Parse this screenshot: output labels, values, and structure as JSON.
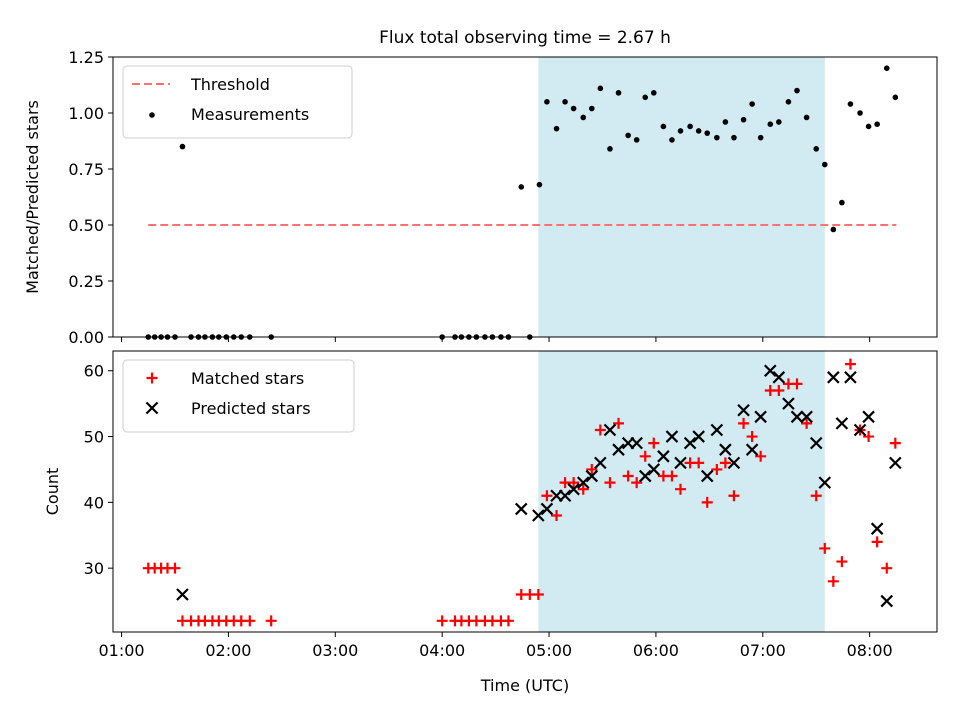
{
  "figure_title": "Flux total observing time = 2.67 h",
  "colors": {
    "threshold": "#ff7070",
    "measurement": "#000000",
    "matched": "#ff0000",
    "predicted": "#000000",
    "span": "#add8e6"
  },
  "chart_data": [
    {
      "type": "scatter",
      "title": "Flux total observing time = 2.67 h",
      "xlabel": "",
      "ylabel": "Matched/Predicted stars",
      "x_unit": "hours UTC",
      "xlim": [
        0.92,
        8.63
      ],
      "ylim": [
        0,
        1.25
      ],
      "yticks": [
        0.0,
        0.25,
        0.5,
        0.75,
        1.0,
        1.25
      ],
      "ytick_labels": [
        "0.00",
        "0.25",
        "0.50",
        "0.75",
        "1.00",
        "1.25"
      ],
      "grid": false,
      "legend": "upper-left",
      "shaded_span": [
        4.9,
        7.58
      ],
      "threshold": {
        "name": "Threshold",
        "value": 0.5,
        "x": [
          1.25,
          8.25
        ]
      },
      "series": [
        {
          "name": "Measurements",
          "marker": "dot",
          "points": [
            [
              1.25,
              0.0
            ],
            [
              1.31,
              0.0
            ],
            [
              1.37,
              0.0
            ],
            [
              1.43,
              0.0
            ],
            [
              1.5,
              0.0
            ],
            [
              1.57,
              0.85
            ],
            [
              1.65,
              0.0
            ],
            [
              1.72,
              0.0
            ],
            [
              1.78,
              0.0
            ],
            [
              1.85,
              0.0
            ],
            [
              1.91,
              0.0
            ],
            [
              1.98,
              0.0
            ],
            [
              2.05,
              0.0
            ],
            [
              2.12,
              0.0
            ],
            [
              2.2,
              0.0
            ],
            [
              2.4,
              0.0
            ],
            [
              4.0,
              0.0
            ],
            [
              4.12,
              0.0
            ],
            [
              4.18,
              0.0
            ],
            [
              4.25,
              0.0
            ],
            [
              4.32,
              0.0
            ],
            [
              4.4,
              0.0
            ],
            [
              4.47,
              0.0
            ],
            [
              4.55,
              0.0
            ],
            [
              4.62,
              0.0
            ],
            [
              4.74,
              0.67
            ],
            [
              4.82,
              0.0
            ],
            [
              4.91,
              0.68
            ],
            [
              4.98,
              1.05
            ],
            [
              5.07,
              0.93
            ],
            [
              5.15,
              1.05
            ],
            [
              5.23,
              1.02
            ],
            [
              5.32,
              0.98
            ],
            [
              5.4,
              1.02
            ],
            [
              5.48,
              1.11
            ],
            [
              5.57,
              0.84
            ],
            [
              5.65,
              1.09
            ],
            [
              5.74,
              0.9
            ],
            [
              5.82,
              0.88
            ],
            [
              5.9,
              1.07
            ],
            [
              5.98,
              1.09
            ],
            [
              6.07,
              0.94
            ],
            [
              6.15,
              0.88
            ],
            [
              6.23,
              0.92
            ],
            [
              6.32,
              0.94
            ],
            [
              6.4,
              0.92
            ],
            [
              6.48,
              0.91
            ],
            [
              6.57,
              0.89
            ],
            [
              6.65,
              0.96
            ],
            [
              6.73,
              0.89
            ],
            [
              6.82,
              0.97
            ],
            [
              6.9,
              1.04
            ],
            [
              6.98,
              0.89
            ],
            [
              7.07,
              0.95
            ],
            [
              7.15,
              0.96
            ],
            [
              7.24,
              1.05
            ],
            [
              7.32,
              1.1
            ],
            [
              7.41,
              0.98
            ],
            [
              7.5,
              0.84
            ],
            [
              7.58,
              0.77
            ],
            [
              7.66,
              0.48
            ],
            [
              7.74,
              0.6
            ],
            [
              7.82,
              1.04
            ],
            [
              7.91,
              1.0
            ],
            [
              7.99,
              0.94
            ],
            [
              8.07,
              0.95
            ],
            [
              8.16,
              1.2
            ],
            [
              8.24,
              1.07
            ]
          ]
        }
      ]
    },
    {
      "type": "scatter",
      "title": "",
      "xlabel": "Time (UTC)",
      "ylabel": "Count",
      "x_unit": "hours UTC",
      "xlim": [
        0.92,
        8.63
      ],
      "ylim": [
        20.3,
        63.0
      ],
      "yticks": [
        30,
        40,
        50,
        60
      ],
      "ytick_labels": [
        "30",
        "40",
        "50",
        "60"
      ],
      "xticks": [
        1,
        2,
        3,
        4,
        5,
        6,
        7,
        8
      ],
      "xtick_labels": [
        "01:00",
        "02:00",
        "03:00",
        "04:00",
        "05:00",
        "06:00",
        "07:00",
        "08:00"
      ],
      "grid": false,
      "legend": "upper-left",
      "shaded_span": [
        4.9,
        7.58
      ],
      "series": [
        {
          "name": "Matched stars",
          "marker": "plus",
          "points": [
            [
              1.25,
              30
            ],
            [
              1.31,
              30
            ],
            [
              1.37,
              30
            ],
            [
              1.43,
              30
            ],
            [
              1.5,
              30
            ],
            [
              1.57,
              22
            ],
            [
              1.65,
              22
            ],
            [
              1.72,
              22
            ],
            [
              1.78,
              22
            ],
            [
              1.85,
              22
            ],
            [
              1.91,
              22
            ],
            [
              1.98,
              22
            ],
            [
              2.05,
              22
            ],
            [
              2.12,
              22
            ],
            [
              2.2,
              22
            ],
            [
              2.4,
              22
            ],
            [
              4.0,
              22
            ],
            [
              4.12,
              22
            ],
            [
              4.18,
              22
            ],
            [
              4.25,
              22
            ],
            [
              4.32,
              22
            ],
            [
              4.4,
              22
            ],
            [
              4.47,
              22
            ],
            [
              4.55,
              22
            ],
            [
              4.62,
              22
            ],
            [
              4.74,
              26
            ],
            [
              4.82,
              26
            ],
            [
              4.9,
              26
            ],
            [
              4.98,
              41
            ],
            [
              5.07,
              38
            ],
            [
              5.15,
              43
            ],
            [
              5.23,
              43
            ],
            [
              5.32,
              42
            ],
            [
              5.4,
              45
            ],
            [
              5.48,
              51
            ],
            [
              5.57,
              43
            ],
            [
              5.65,
              52
            ],
            [
              5.74,
              44
            ],
            [
              5.82,
              43
            ],
            [
              5.9,
              47
            ],
            [
              5.98,
              49
            ],
            [
              6.07,
              44
            ],
            [
              6.15,
              44
            ],
            [
              6.23,
              42
            ],
            [
              6.32,
              46
            ],
            [
              6.4,
              46
            ],
            [
              6.48,
              40
            ],
            [
              6.57,
              45
            ],
            [
              6.65,
              46
            ],
            [
              6.73,
              41
            ],
            [
              6.82,
              52
            ],
            [
              6.9,
              50
            ],
            [
              6.98,
              47
            ],
            [
              7.07,
              57
            ],
            [
              7.15,
              57
            ],
            [
              7.24,
              58
            ],
            [
              7.32,
              58
            ],
            [
              7.41,
              52
            ],
            [
              7.5,
              41
            ],
            [
              7.58,
              33
            ],
            [
              7.66,
              28
            ],
            [
              7.74,
              31
            ],
            [
              7.82,
              61
            ],
            [
              7.91,
              51
            ],
            [
              7.99,
              50
            ],
            [
              8.07,
              34
            ],
            [
              8.16,
              30
            ],
            [
              8.24,
              49
            ]
          ]
        },
        {
          "name": "Predicted stars",
          "marker": "x",
          "points": [
            [
              1.57,
              26
            ],
            [
              4.74,
              39
            ],
            [
              4.9,
              38
            ],
            [
              4.98,
              39
            ],
            [
              5.07,
              41
            ],
            [
              5.15,
              41
            ],
            [
              5.23,
              42
            ],
            [
              5.32,
              43
            ],
            [
              5.4,
              44
            ],
            [
              5.48,
              46
            ],
            [
              5.57,
              51
            ],
            [
              5.65,
              48
            ],
            [
              5.74,
              49
            ],
            [
              5.82,
              49
            ],
            [
              5.9,
              44
            ],
            [
              5.98,
              45
            ],
            [
              6.07,
              47
            ],
            [
              6.15,
              50
            ],
            [
              6.23,
              46
            ],
            [
              6.32,
              49
            ],
            [
              6.4,
              50
            ],
            [
              6.48,
              44
            ],
            [
              6.57,
              51
            ],
            [
              6.65,
              48
            ],
            [
              6.73,
              46
            ],
            [
              6.82,
              54
            ],
            [
              6.9,
              48
            ],
            [
              6.98,
              53
            ],
            [
              7.07,
              60
            ],
            [
              7.15,
              59
            ],
            [
              7.24,
              55
            ],
            [
              7.32,
              53
            ],
            [
              7.41,
              53
            ],
            [
              7.5,
              49
            ],
            [
              7.58,
              43
            ],
            [
              7.66,
              59
            ],
            [
              7.74,
              52
            ],
            [
              7.82,
              59
            ],
            [
              7.91,
              51
            ],
            [
              7.99,
              53
            ],
            [
              8.07,
              36
            ],
            [
              8.16,
              25
            ],
            [
              8.24,
              46
            ]
          ]
        }
      ]
    }
  ]
}
